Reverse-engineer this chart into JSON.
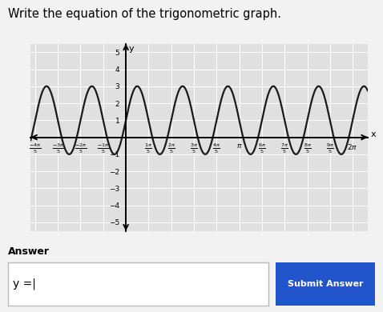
{
  "title": "Write the equation of the trigonometric graph.",
  "amplitude": 2,
  "vertical_shift": 1,
  "B": 5,
  "xlim_left": -2.6389,
  "xlim_right": 6.7,
  "ylim": [
    -5.5,
    5.5
  ],
  "yticks": [
    -5,
    -4,
    -3,
    -2,
    -1,
    1,
    2,
    3,
    4,
    5
  ],
  "fig_bg": "#f2f2f2",
  "plot_bg": "#e0e0e0",
  "grid_color": "#ffffff",
  "curve_color": "#1a1a1a",
  "answer_label": "Answer",
  "answer_box_text": "y =|",
  "submit_btn_text": "Submit Answer",
  "submit_btn_color": "#2255cc",
  "x_tick_nums": [
    -4,
    -3,
    -2,
    -1,
    1,
    2,
    3,
    4,
    1,
    6,
    7,
    8,
    9,
    2
  ],
  "x_tick_dens": [
    5,
    5,
    5,
    5,
    5,
    5,
    5,
    5,
    1,
    5,
    5,
    5,
    5,
    1
  ],
  "title_fontsize": 10.5,
  "tick_fontsize": 6.5
}
